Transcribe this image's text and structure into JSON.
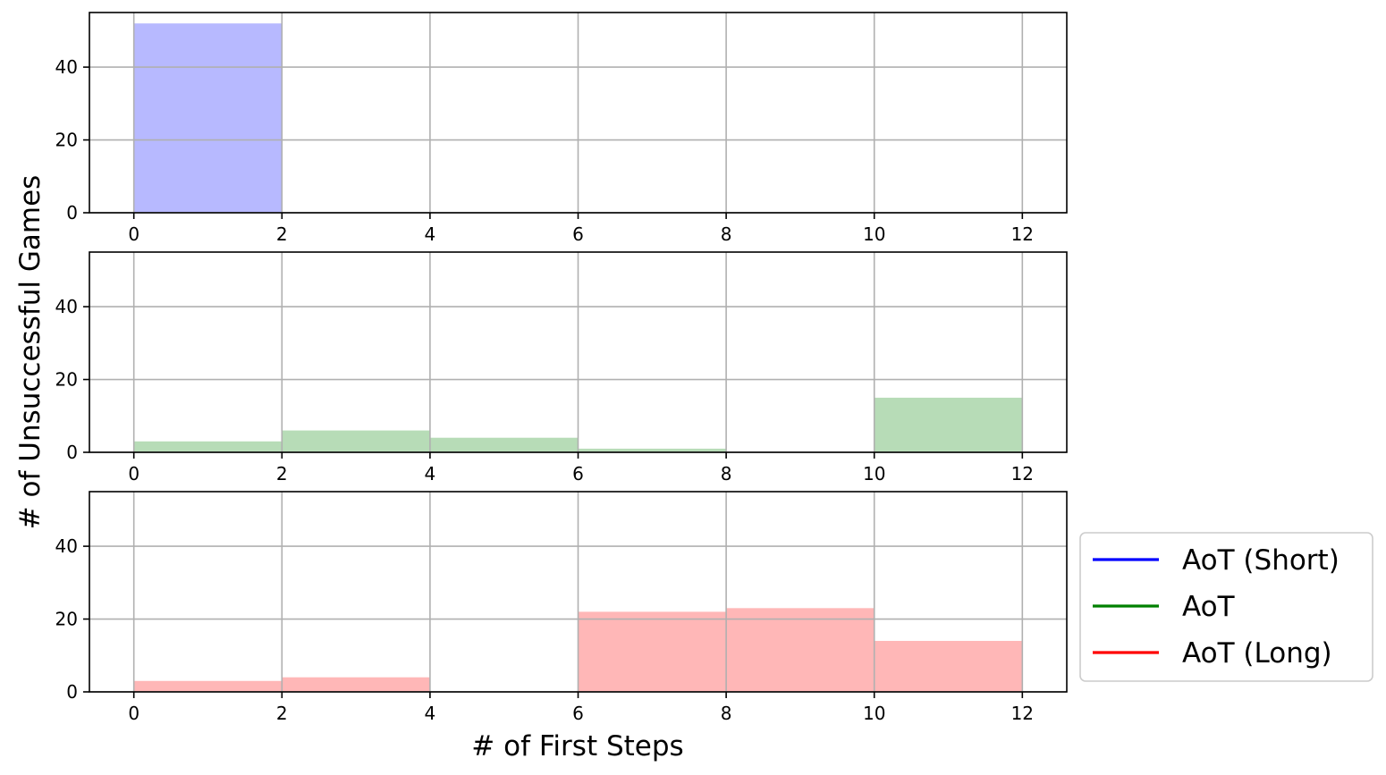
{
  "chart_data": [
    {
      "type": "bar",
      "bin_edges": [
        0,
        2,
        4,
        6,
        8,
        10,
        12
      ],
      "values": [
        52,
        0,
        0,
        0,
        0,
        0
      ],
      "color": "#b7b9ff",
      "xticks": [
        "0",
        "2",
        "4",
        "6",
        "8",
        "10",
        "12"
      ],
      "yticks": [
        "0",
        "20",
        "40"
      ],
      "xlim": [
        -0.6,
        12.6
      ],
      "ylim": [
        0,
        55
      ],
      "grid": true
    },
    {
      "type": "bar",
      "bin_edges": [
        0,
        2,
        4,
        6,
        8,
        10,
        12
      ],
      "values": [
        3,
        6,
        4,
        1,
        0,
        15
      ],
      "color": "#b7dcb7",
      "xticks": [
        "0",
        "2",
        "4",
        "6",
        "8",
        "10",
        "12"
      ],
      "yticks": [
        "0",
        "20",
        "40"
      ],
      "xlim": [
        -0.6,
        12.6
      ],
      "ylim": [
        0,
        55
      ],
      "grid": true
    },
    {
      "type": "bar",
      "bin_edges": [
        0,
        2,
        4,
        6,
        8,
        10,
        12
      ],
      "values": [
        3,
        4,
        0,
        22,
        23,
        14
      ],
      "color": "#ffb7b7",
      "xticks": [
        "0",
        "2",
        "4",
        "6",
        "8",
        "10",
        "12"
      ],
      "yticks": [
        "0",
        "20",
        "40"
      ],
      "xlim": [
        -0.6,
        12.6
      ],
      "ylim": [
        0,
        55
      ],
      "grid": true
    }
  ],
  "xlabel": "# of First Steps",
  "ylabel": "# of Unsuccessful Games",
  "legend": {
    "placement": "right",
    "items": [
      {
        "label": "AoT (Short)",
        "color": "#0000ff"
      },
      {
        "label": "AoT",
        "color": "#008000"
      },
      {
        "label": "AoT (Long)",
        "color": "#ff0000"
      }
    ]
  }
}
